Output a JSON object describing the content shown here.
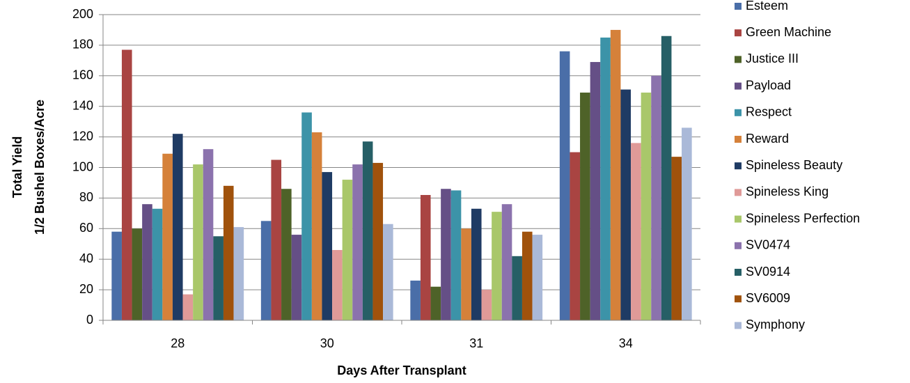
{
  "chart_data": {
    "type": "bar",
    "x_label": "Days After Transplant",
    "y_label": [
      "Total Yield",
      "1/2 Bushel Boxes/Acre"
    ],
    "categories": [
      "28",
      "30",
      "31",
      "34"
    ],
    "series": [
      {
        "name": "Esteem",
        "color": "#4a6ea8",
        "values": [
          58,
          65,
          26,
          176
        ]
      },
      {
        "name": "Green Machine",
        "color": "#a94442",
        "values": [
          177,
          105,
          82,
          110
        ]
      },
      {
        "name": "Justice III",
        "color": "#4e6228",
        "values": [
          60,
          86,
          22,
          149
        ]
      },
      {
        "name": "Payload",
        "color": "#654f86",
        "values": [
          76,
          56,
          86,
          169
        ]
      },
      {
        "name": "Respect",
        "color": "#3c93a8",
        "values": [
          73,
          136,
          85,
          185
        ]
      },
      {
        "name": "Reward",
        "color": "#d5813a",
        "values": [
          109,
          123,
          60,
          190
        ]
      },
      {
        "name": "Spineless Beauty",
        "color": "#1f3b64",
        "values": [
          122,
          97,
          73,
          151
        ]
      },
      {
        "name": "Spineless King",
        "color": "#e09a98",
        "values": [
          17,
          46,
          20,
          116
        ]
      },
      {
        "name": "Spineless Perfection",
        "color": "#a9c76a",
        "values": [
          102,
          92,
          71,
          149
        ]
      },
      {
        "name": "SV0474",
        "color": "#8b72ad",
        "values": [
          112,
          102,
          76,
          160
        ]
      },
      {
        "name": "SV0914",
        "color": "#265f66",
        "values": [
          55,
          117,
          42,
          186
        ]
      },
      {
        "name": "SV6009",
        "color": "#a0520c",
        "values": [
          88,
          103,
          58,
          107
        ]
      },
      {
        "name": "Symphony",
        "color": "#aab9d8",
        "values": [
          61,
          63,
          56,
          126
        ]
      }
    ],
    "ylim": [
      0,
      200
    ],
    "yticks": [
      0,
      20,
      40,
      60,
      80,
      100,
      120,
      140,
      160,
      180,
      200
    ],
    "grid": true,
    "legend": "right"
  }
}
